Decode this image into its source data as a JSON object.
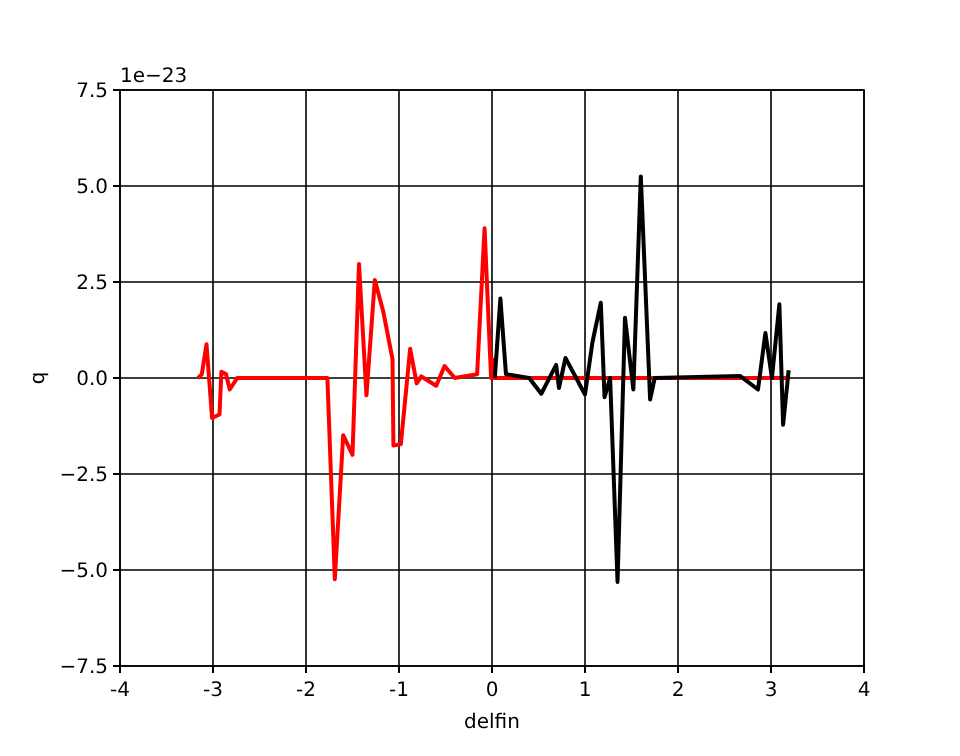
{
  "chart_data": {
    "type": "line",
    "xlabel": "delfin",
    "ylabel": "q",
    "annotations": [
      "1e−23"
    ],
    "xlim": [
      -4,
      4
    ],
    "xticks": [
      -4,
      -3,
      -2,
      -1,
      0,
      1,
      2,
      3,
      4
    ],
    "ylim": [
      -7.5,
      7.5
    ],
    "yticks": [
      {
        "value": -7.5,
        "label": "−7.5"
      },
      {
        "value": -5,
        "label": "−5.0"
      },
      {
        "value": -2.5,
        "label": "−2.5"
      },
      {
        "value": 0,
        "label": "0.0"
      },
      {
        "value": 2.5,
        "label": "2.5"
      },
      {
        "value": 5,
        "label": "5.0"
      },
      {
        "value": 7.5,
        "label": "7.5"
      }
    ],
    "grid": true,
    "marker": "none",
    "line_style": "solid",
    "series": [
      {
        "color": "#ff0000",
        "x": [
          -3.16,
          -3.12,
          -3.07,
          -3.01,
          -2.93,
          -2.91,
          -2.86,
          -2.82,
          -2.74,
          -1.77,
          -1.69,
          -1.6,
          -1.5,
          -1.43,
          -1.35,
          -1.26,
          -1.17,
          -1.07,
          -1.06,
          -0.98,
          -0.88,
          -0.81,
          -0.76,
          -0.6,
          -0.51,
          -0.4,
          -0.16,
          -0.08,
          -0.01,
          0.0,
          0.02,
          0.5,
          1.5,
          2.5,
          3.19
        ],
        "values": [
          0,
          0.1,
          0.88,
          -1.04,
          -0.95,
          0.16,
          0.1,
          -0.3,
          0,
          0,
          -5.24,
          -1.49,
          -2.0,
          2.97,
          -0.45,
          2.55,
          1.74,
          0.49,
          -1.76,
          -1.72,
          0.76,
          -0.14,
          0.04,
          -0.2,
          0.31,
          0,
          0.1,
          3.9,
          0,
          0.5,
          0,
          0,
          0,
          0,
          0
        ]
      },
      {
        "color": "#000000",
        "x": [
          0.03,
          0.09,
          0.15,
          0.4,
          0.53,
          0.69,
          0.72,
          0.79,
          1.0,
          1.08,
          1.17,
          1.21,
          1.27,
          1.35,
          1.43,
          1.52,
          1.6,
          1.7,
          1.75,
          2.67,
          2.86,
          2.94,
          3.01,
          3.09,
          3.13,
          3.19
        ],
        "values": [
          0,
          2.07,
          0.1,
          0,
          -0.41,
          0.34,
          -0.26,
          0.52,
          -0.43,
          0.93,
          1.96,
          -0.5,
          0,
          -5.31,
          1.57,
          -0.3,
          5.25,
          -0.56,
          0,
          0.05,
          -0.3,
          1.17,
          0,
          1.92,
          -1.22,
          0.2
        ]
      }
    ]
  }
}
